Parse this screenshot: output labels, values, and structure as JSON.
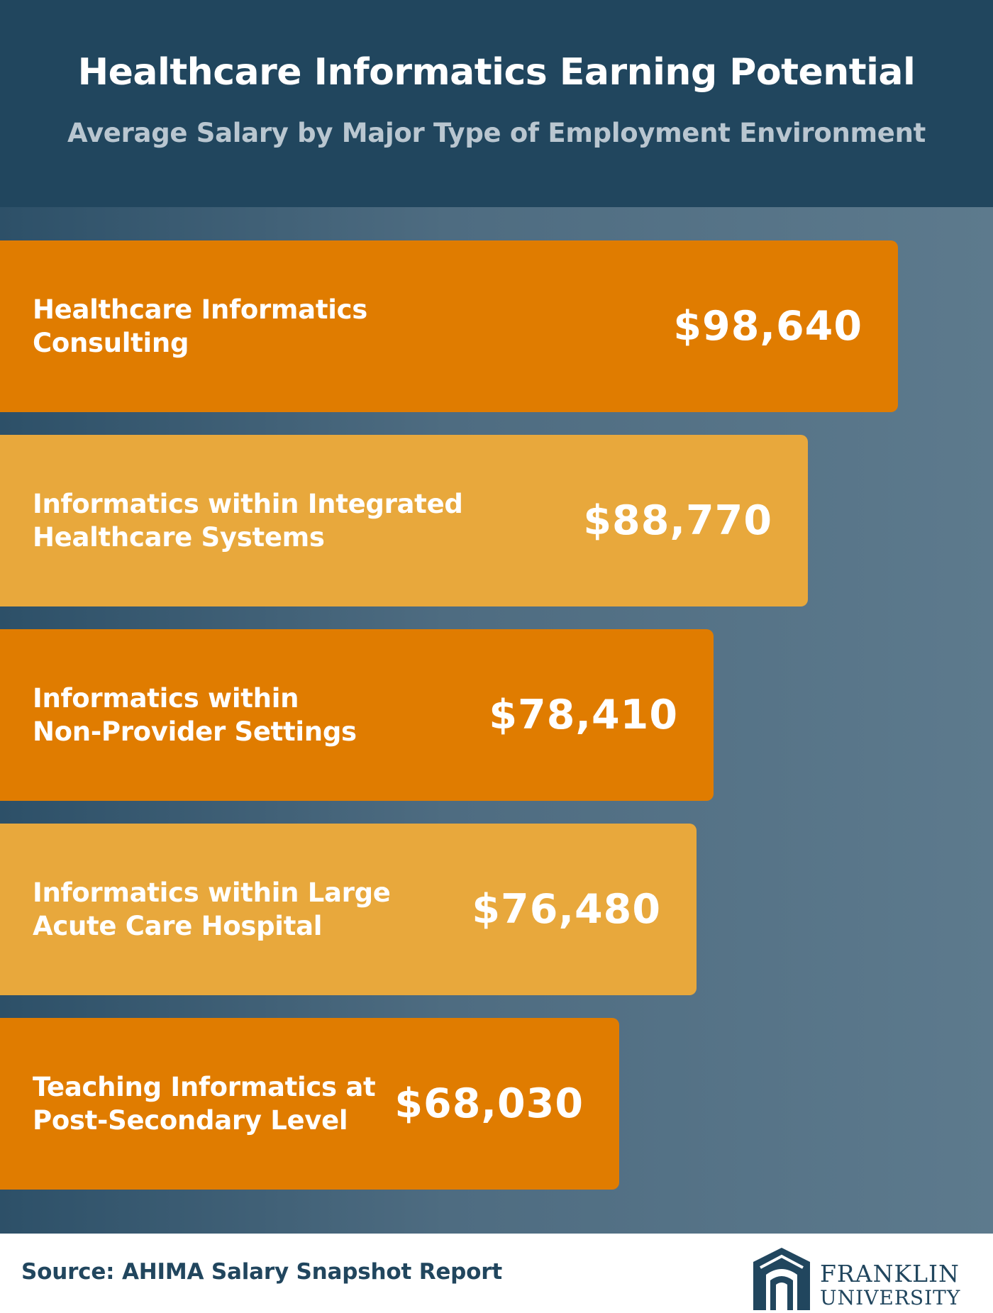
{
  "header": {
    "title": "Healthcare Informatics Earning Potential",
    "subtitle": "Average Salary by Major Type of Employment Environment"
  },
  "colors": {
    "header_bg": "#21465e",
    "bar_dark": "#e07c00",
    "bar_light": "#e8a83c",
    "background": "#4e6c81"
  },
  "chart_data": {
    "type": "bar",
    "orientation": "horizontal",
    "categories": [
      "Healthcare Informatics Consulting",
      "Informatics within Integrated Healthcare Systems",
      "Informatics within Non-Provider Settings",
      "Informatics within Large Acute Care Hospital",
      "Teaching Informatics at Post-Secondary Level"
    ],
    "values": [
      98640,
      88770,
      78410,
      76480,
      68030
    ],
    "value_labels": [
      "$98,640",
      "$88,770",
      "$78,410",
      "$76,480",
      "$68,030"
    ],
    "title": "Healthcare Informatics Earning Potential",
    "subtitle": "Average Salary by Major Type of Employment Environment",
    "grid": false
  },
  "bars": [
    {
      "label_lines": [
        "Healthcare Informatics Consulting"
      ],
      "value": "$98,640",
      "shade": "dark"
    },
    {
      "label_lines": [
        "Informatics within Integrated",
        "Healthcare Systems"
      ],
      "value": "$88,770",
      "shade": "light"
    },
    {
      "label_lines": [
        "Informatics within",
        "Non-Provider Settings"
      ],
      "value": "$78,410",
      "shade": "dark"
    },
    {
      "label_lines": [
        "Informatics within Large",
        "Acute Care Hospital"
      ],
      "value": "$76,480",
      "shade": "light"
    },
    {
      "label_lines": [
        "Teaching Informatics at",
        "Post-Secondary Level"
      ],
      "value": "$68,030",
      "shade": "dark"
    }
  ],
  "footer": {
    "source": "Source: AHIMA Salary Snapshot Report",
    "logo_line1": "FRANKLIN",
    "logo_line2": "UNIVERSITY"
  }
}
